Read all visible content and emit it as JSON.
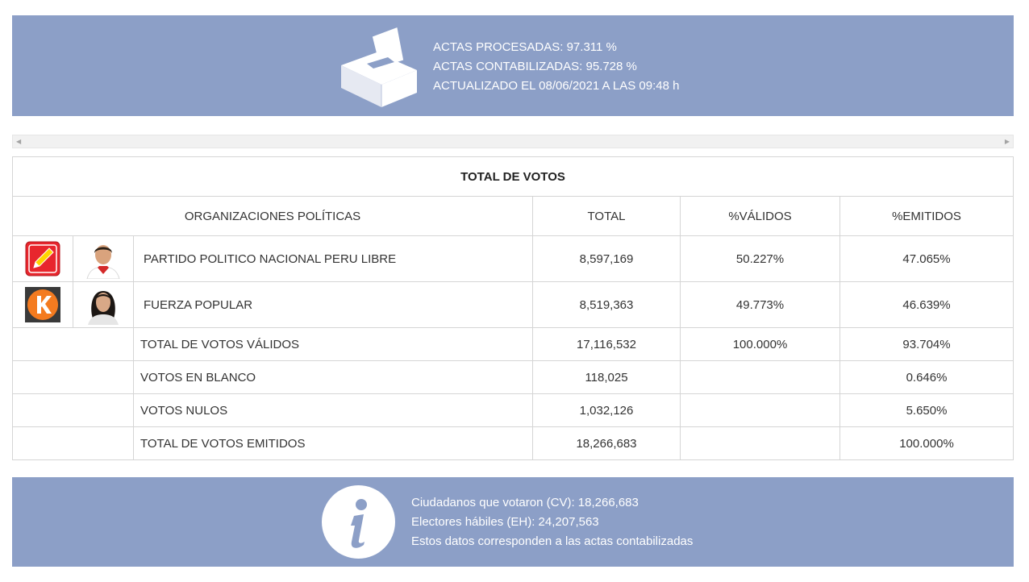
{
  "header": {
    "icon": "ballot-box-icon",
    "lines": [
      "ACTAS PROCESADAS: 97.311 %",
      "ACTAS CONTABILIZADAS: 95.728 %",
      "ACTUALIZADO EL 08/06/2021 A LAS 09:48 h"
    ]
  },
  "table": {
    "title": "TOTAL DE VOTOS",
    "columns": [
      "ORGANIZACIONES POLÍTICAS",
      "TOTAL",
      "%VÁLIDOS",
      "%EMITIDOS"
    ],
    "parties": [
      {
        "name": "PARTIDO POLITICO NACIONAL PERU LIBRE",
        "total": "8,597,169",
        "validos": "50.227%",
        "emitidos": "47.065%",
        "logo": "pencil-logo-icon",
        "photo": "candidate-photo"
      },
      {
        "name": "FUERZA POPULAR",
        "total": "8,519,363",
        "validos": "49.773%",
        "emitidos": "46.639%",
        "logo": "k-logo-icon",
        "photo": "candidate-photo"
      }
    ],
    "summary": [
      {
        "label": "TOTAL DE VOTOS VÁLIDOS",
        "total": "17,116,532",
        "validos": "100.000%",
        "emitidos": "93.704%"
      },
      {
        "label": "VOTOS EN BLANCO",
        "total": "118,025",
        "validos": "",
        "emitidos": "0.646%"
      },
      {
        "label": "VOTOS NULOS",
        "total": "1,032,126",
        "validos": "",
        "emitidos": "5.650%"
      },
      {
        "label": "TOTAL DE VOTOS EMITIDOS",
        "total": "18,266,683",
        "validos": "",
        "emitidos": "100.000%"
      }
    ]
  },
  "footer": {
    "icon": "info-icon",
    "lines": [
      "Ciudadanos que votaron (CV): 18,266,683",
      "Electores hábiles (EH): 24,207,563",
      "Estos datos corresponden a las actas contabilizadas"
    ]
  },
  "colors": {
    "banner": "#8c9fc7",
    "peru_libre": "#e8262d",
    "fuerza_popular": "#f47b20"
  }
}
